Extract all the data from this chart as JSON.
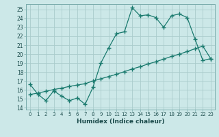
{
  "xlabel": "Humidex (Indice chaleur)",
  "bg_color": "#cce8e8",
  "line_color": "#1a7a6e",
  "grid_color": "#aacccc",
  "xlim": [
    -0.5,
    23.5
  ],
  "ylim": [
    13.8,
    25.6
  ],
  "yticks": [
    14,
    15,
    16,
    17,
    18,
    19,
    20,
    21,
    22,
    23,
    24,
    25
  ],
  "xticks": [
    0,
    1,
    2,
    3,
    4,
    5,
    6,
    7,
    8,
    9,
    10,
    11,
    12,
    13,
    14,
    15,
    16,
    17,
    18,
    19,
    20,
    21,
    22,
    23
  ],
  "line1_x": [
    0,
    1,
    2,
    3,
    4,
    5,
    6,
    7,
    8,
    9,
    10,
    11,
    12,
    13,
    14,
    15,
    16,
    17,
    18,
    19,
    20,
    21,
    22,
    23
  ],
  "line1_y": [
    16.6,
    15.5,
    14.8,
    15.9,
    15.3,
    14.8,
    15.1,
    14.4,
    16.3,
    19.0,
    20.7,
    22.3,
    22.5,
    25.2,
    24.3,
    24.4,
    24.1,
    23.0,
    24.3,
    24.5,
    24.1,
    21.7,
    19.3,
    19.5
  ],
  "line2_x": [
    0,
    1,
    2,
    3,
    4,
    5,
    6,
    7,
    8,
    9,
    10,
    11,
    12,
    13,
    14,
    15,
    16,
    17,
    18,
    19,
    20,
    21,
    22,
    23
  ],
  "line2_y": [
    15.5,
    15.65,
    15.85,
    16.05,
    16.2,
    16.4,
    16.55,
    16.7,
    17.0,
    17.25,
    17.5,
    17.75,
    18.05,
    18.35,
    18.6,
    18.9,
    19.15,
    19.45,
    19.75,
    20.0,
    20.3,
    20.6,
    20.9,
    19.5
  ]
}
